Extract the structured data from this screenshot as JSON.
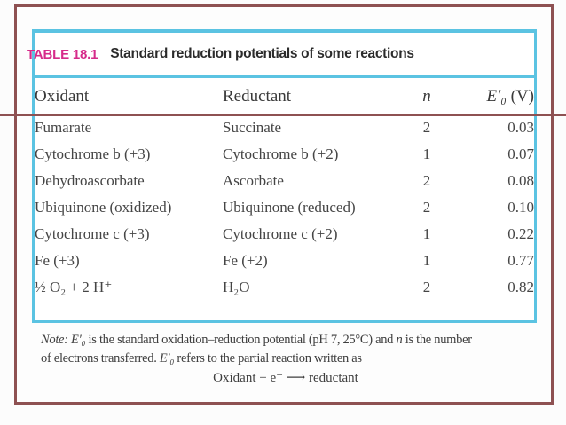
{
  "colors": {
    "frame_maroon": "#8e5152",
    "table_border_cyan": "#5bc3e2",
    "caption_accent_magenta": "#d62b8a"
  },
  "table": {
    "tag": "TABLE 18.1",
    "title": "Standard reduction potentials of some reactions",
    "columns": {
      "c1": "Oxidant",
      "c2": "Reductant",
      "c3": "n",
      "c4_sym": "E′₀",
      "c4_unit": " (V)"
    },
    "rows": [
      [
        "Fumarate",
        "Succinate",
        "2",
        "0.03"
      ],
      [
        "Cytochrome b (+3)",
        "Cytochrome b (+2)",
        "1",
        "0.07"
      ],
      [
        "Dehydroascorbate",
        "Ascorbate",
        "2",
        "0.08"
      ],
      [
        "Ubiquinone (oxidized)",
        "Ubiquinone (reduced)",
        "2",
        "0.10"
      ],
      [
        "Cytochrome c (+3)",
        "Cytochrome c (+2)",
        "1",
        "0.22"
      ],
      [
        "Fe (+3)",
        "Fe (+2)",
        "1",
        "0.77"
      ],
      [
        "½ O₂ + 2 H⁺",
        "H₂O",
        "2",
        "0.82"
      ]
    ]
  },
  "note": {
    "line1": {
      "p0": "Note: ",
      "p1": "E′₀",
      "p2": " is the standard oxidation–reduction potential (pH 7, 25°C) and ",
      "p3": "n",
      "p4": " is the number"
    },
    "line2": {
      "p0": "of electrons transferred. ",
      "p1": "E′₀",
      "p2": " refers to the partial reaction written as"
    },
    "equation": "Oxidant + e⁻ ⟶ reductant"
  }
}
